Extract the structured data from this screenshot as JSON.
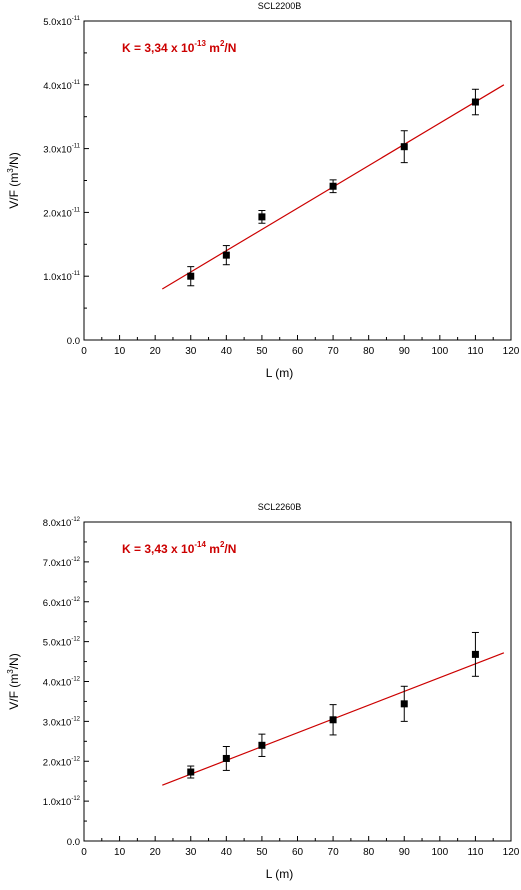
{
  "chart_data": [
    {
      "type": "scatter",
      "title": "SCL2200B",
      "annotation": {
        "main": "K = 3,34 x 10",
        "exp": "-13",
        "tail": " m",
        "unit_exp": "2",
        "unit_end": "/N"
      },
      "xlabel": "L (m)",
      "ylabel": {
        "main": "V/F (m",
        "sup": "3",
        "end": "/N)"
      },
      "xlim": [
        0,
        120
      ],
      "ylim": [
        0,
        5e-11
      ],
      "xticks": [
        0,
        10,
        20,
        30,
        40,
        50,
        60,
        70,
        80,
        90,
        100,
        110,
        120
      ],
      "xtick_labels": [
        "0",
        "10",
        "20",
        "30",
        "40",
        "50",
        "60",
        "70",
        "80",
        "90",
        "100",
        "110",
        "120"
      ],
      "yticks": [
        0,
        1e-11,
        2e-11,
        3e-11,
        4e-11,
        5e-11
      ],
      "ytick_labels": [
        {
          "main": "0.0",
          "exp": ""
        },
        {
          "main": "1.0x10",
          "exp": "-11"
        },
        {
          "main": "2.0x10",
          "exp": "-11"
        },
        {
          "main": "3.0x10",
          "exp": "-11"
        },
        {
          "main": "4.0x10",
          "exp": "-11"
        },
        {
          "main": "5.0x10",
          "exp": "-11"
        }
      ],
      "points": [
        {
          "x": 30,
          "y": 1e-11,
          "err": 1.5e-12
        },
        {
          "x": 40,
          "y": 1.33e-11,
          "err": 1.5e-12
        },
        {
          "x": 50,
          "y": 1.93e-11,
          "err": 1e-12
        },
        {
          "x": 70,
          "y": 2.41e-11,
          "err": 1e-12
        },
        {
          "x": 90,
          "y": 3.03e-11,
          "err": 2.5e-12
        },
        {
          "x": 110,
          "y": 3.73e-11,
          "err": 2e-12
        }
      ],
      "fit_line": {
        "x": [
          22,
          118
        ],
        "y": [
          8e-12,
          4e-11
        ]
      },
      "colors": {
        "fit": "#cc0000",
        "annotation": "#cc0000",
        "points": "#000000"
      },
      "grid": false
    },
    {
      "type": "scatter",
      "title": "SCL2260B",
      "annotation": {
        "main": "K = 3,43 x 10",
        "exp": "-14",
        "tail": " m",
        "unit_exp": "2",
        "unit_end": "/N"
      },
      "xlabel": "L (m)",
      "ylabel": {
        "main": "V/F (m",
        "sup": "3",
        "end": "/N)"
      },
      "xlim": [
        0,
        120
      ],
      "ylim": [
        0,
        8e-12
      ],
      "xticks": [
        0,
        10,
        20,
        30,
        40,
        50,
        60,
        70,
        80,
        90,
        100,
        110,
        120
      ],
      "xtick_labels": [
        "0",
        "10",
        "20",
        "30",
        "40",
        "50",
        "60",
        "70",
        "80",
        "90",
        "100",
        "110",
        "120"
      ],
      "yticks": [
        0,
        1e-12,
        2e-12,
        3e-12,
        4e-12,
        5e-12,
        6e-12,
        7e-12,
        8e-12
      ],
      "ytick_labels": [
        {
          "main": "0.0",
          "exp": ""
        },
        {
          "main": "1.0x10",
          "exp": "-12"
        },
        {
          "main": "2.0x10",
          "exp": "-12"
        },
        {
          "main": "3.0x10",
          "exp": "-12"
        },
        {
          "main": "4.0x10",
          "exp": "-12"
        },
        {
          "main": "5.0x10",
          "exp": "-12"
        },
        {
          "main": "6.0x10",
          "exp": "-12"
        },
        {
          "main": "7.0x10",
          "exp": "-12"
        },
        {
          "main": "8.0x10",
          "exp": "-12"
        }
      ],
      "points": [
        {
          "x": 30,
          "y": 1.73e-12,
          "err": 1.5e-13
        },
        {
          "x": 40,
          "y": 2.07e-12,
          "err": 3e-13
        },
        {
          "x": 50,
          "y": 2.4e-12,
          "err": 2.8e-13
        },
        {
          "x": 70,
          "y": 3.04e-12,
          "err": 3.8e-13
        },
        {
          "x": 90,
          "y": 3.44e-12,
          "err": 4.4e-13
        },
        {
          "x": 110,
          "y": 4.68e-12,
          "err": 5.5e-13
        }
      ],
      "fit_line": {
        "x": [
          22,
          118
        ],
        "y": [
          1.4e-12,
          4.72e-12
        ]
      },
      "colors": {
        "fit": "#cc0000",
        "annotation": "#cc0000",
        "points": "#000000"
      },
      "grid": false
    }
  ]
}
